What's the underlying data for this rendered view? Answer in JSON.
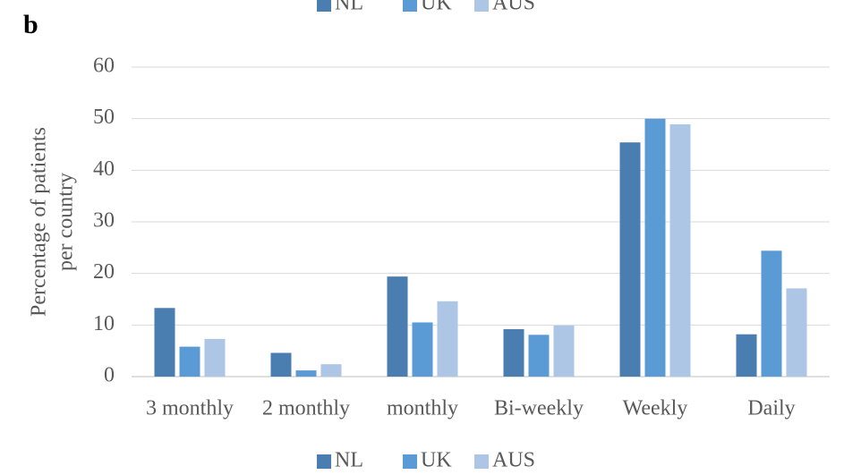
{
  "panel_label": "b",
  "chart_data": {
    "type": "bar",
    "y_label": [
      "Percentage of patients",
      "per country"
    ],
    "categories": [
      "3 monthly",
      "2 monthly",
      "monthly",
      "Bi-weekly",
      "Weekly",
      "Daily"
    ],
    "series": [
      {
        "name": "NL",
        "color": "#4a7eb0",
        "values": [
          13.3,
          4.6,
          19.4,
          9.2,
          45.4,
          8.2
        ]
      },
      {
        "name": "UK",
        "color": "#5b9bd5",
        "values": [
          5.8,
          1.2,
          10.5,
          8.1,
          50,
          24.4
        ]
      },
      {
        "name": "AUS",
        "color": "#adc6e6",
        "values": [
          7.3,
          2.4,
          14.6,
          9.9,
          48.9,
          17.1
        ]
      }
    ],
    "ylim": [
      0,
      60
    ],
    "yticks": [
      0,
      10,
      20,
      30,
      40,
      50,
      60
    ],
    "grid": true,
    "legend": [
      "top",
      "bottom"
    ]
  }
}
